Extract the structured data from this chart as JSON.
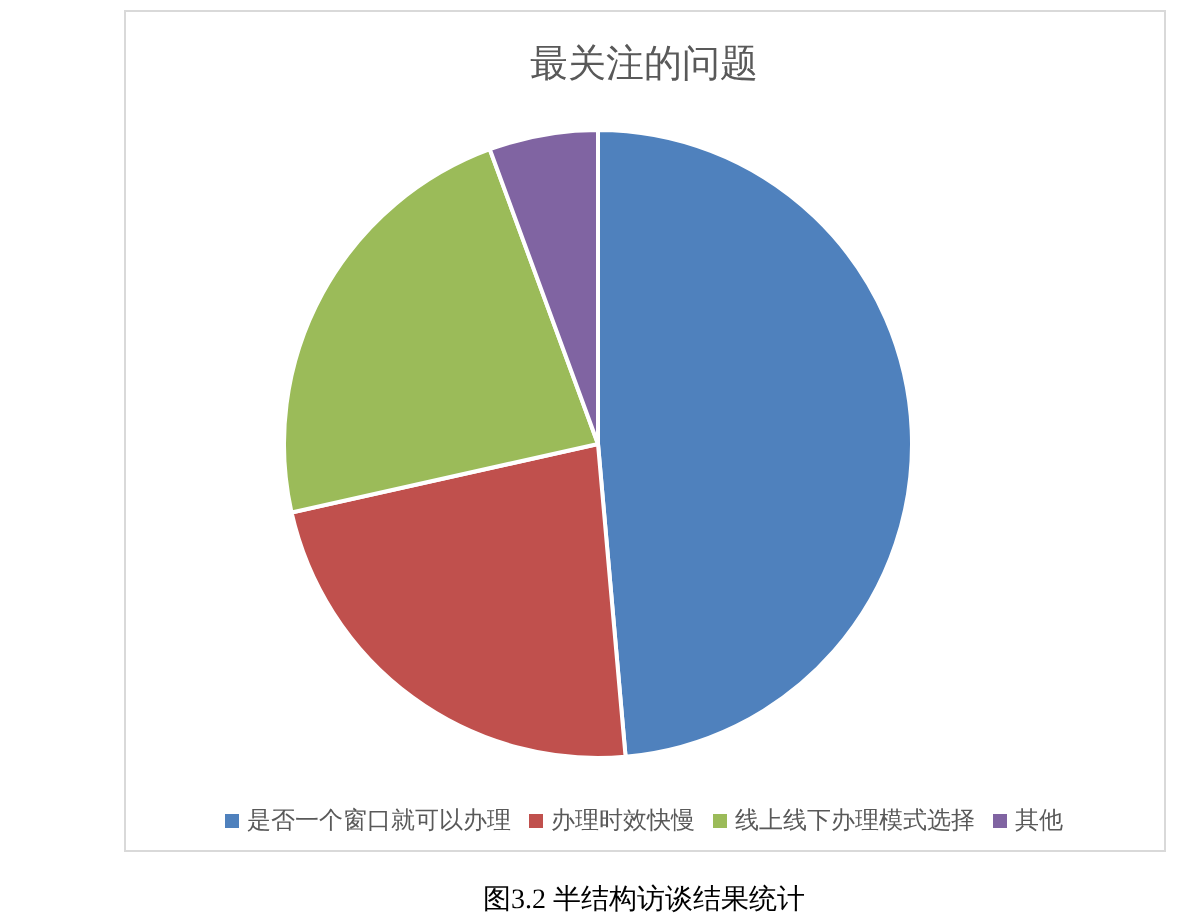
{
  "chart_data": {
    "type": "pie",
    "title": "最关注的问题",
    "categories": [
      "是否一个窗口就可以办理",
      "办理时效快慢",
      "线上线下办理模式选择",
      "其他"
    ],
    "values": [
      48.6,
      22.9,
      22.9,
      5.6
    ],
    "colors": [
      "#4f81bd",
      "#c0504d",
      "#9bbb59",
      "#8064a2"
    ],
    "legend": "bottom",
    "annotations": [
      "图3.2 半结构访谈结果统计"
    ]
  }
}
